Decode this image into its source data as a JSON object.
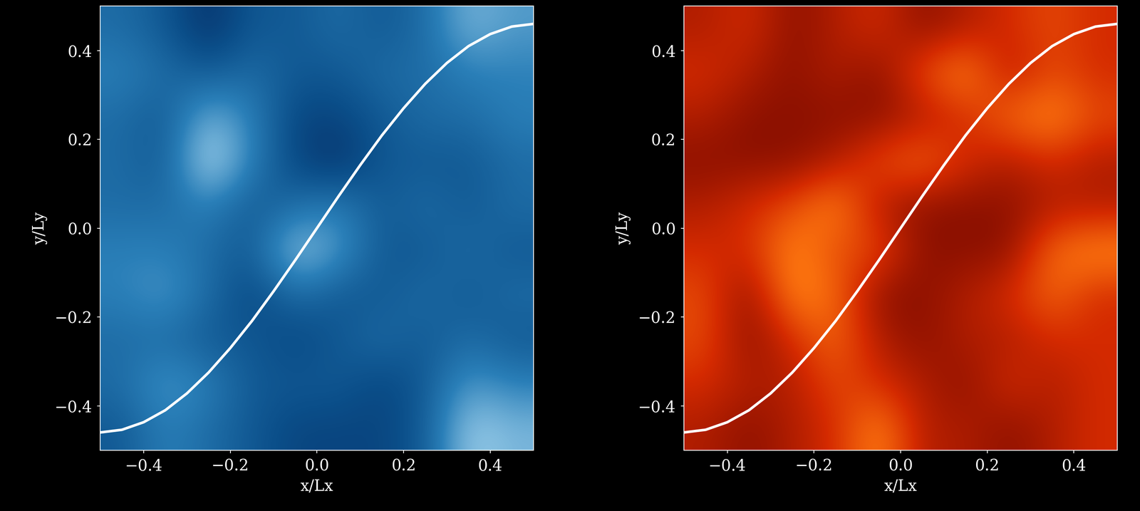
{
  "chart_data": [
    {
      "type": "heatmap",
      "xlabel": "x/Lx",
      "ylabel": "y/Ly",
      "xlim": [
        -0.5,
        0.5
      ],
      "ylim": [
        -0.5,
        0.5
      ],
      "xticks": [
        {
          "value": -0.4,
          "label": "−0.4"
        },
        {
          "value": -0.2,
          "label": "−0.2"
        },
        {
          "value": 0.0,
          "label": "0.0"
        },
        {
          "value": 0.2,
          "label": "0.2"
        },
        {
          "value": 0.4,
          "label": "0.4"
        }
      ],
      "yticks": [
        {
          "value": -0.4,
          "label": "−0.4"
        },
        {
          "value": -0.2,
          "label": "−0.2"
        },
        {
          "value": 0.0,
          "label": "0.0"
        },
        {
          "value": 0.2,
          "label": "0.2"
        },
        {
          "value": 0.4,
          "label": "0.4"
        }
      ],
      "cell_range": [
        0,
        1
      ],
      "cells": [
        [
          0.4,
          0.3,
          0.1,
          0.3,
          0.3,
          0.4,
          0.3,
          0.4,
          0.7,
          0.6
        ],
        [
          0.5,
          0.4,
          0.3,
          0.4,
          0.3,
          0.3,
          0.4,
          0.4,
          0.5,
          0.5
        ],
        [
          0.4,
          0.3,
          0.7,
          0.5,
          0.2,
          0.2,
          0.3,
          0.4,
          0.4,
          0.5
        ],
        [
          0.4,
          0.3,
          0.9,
          0.5,
          0.2,
          0.1,
          0.3,
          0.3,
          0.3,
          0.4
        ],
        [
          0.4,
          0.4,
          0.5,
          0.3,
          0.4,
          0.5,
          0.3,
          0.4,
          0.3,
          0.4
        ],
        [
          0.5,
          0.5,
          0.4,
          0.3,
          0.8,
          0.6,
          0.3,
          0.3,
          0.4,
          0.3
        ],
        [
          0.5,
          0.6,
          0.4,
          0.2,
          0.4,
          0.3,
          0.3,
          0.4,
          0.3,
          0.4
        ],
        [
          0.4,
          0.4,
          0.3,
          0.3,
          0.2,
          0.3,
          0.4,
          0.3,
          0.4,
          0.3
        ],
        [
          0.4,
          0.6,
          0.5,
          0.3,
          0.3,
          0.3,
          0.2,
          0.3,
          0.6,
          0.5
        ],
        [
          0.3,
          0.5,
          0.4,
          0.3,
          0.2,
          0.2,
          0.2,
          0.3,
          0.8,
          0.7
        ]
      ],
      "curve": {
        "color": "#ffffff",
        "x": [
          -0.5,
          -0.45,
          -0.4,
          -0.35,
          -0.3,
          -0.25,
          -0.2,
          -0.15,
          -0.1,
          -0.05,
          0.0,
          0.05,
          0.1,
          0.15,
          0.2,
          0.25,
          0.3,
          0.35,
          0.4,
          0.45,
          0.5
        ],
        "y": [
          -0.46,
          -0.454,
          -0.437,
          -0.41,
          -0.372,
          -0.325,
          -0.27,
          -0.209,
          -0.142,
          -0.072,
          0.0,
          0.072,
          0.142,
          0.209,
          0.27,
          0.325,
          0.372,
          0.41,
          0.437,
          0.454,
          0.46
        ]
      }
    },
    {
      "type": "heatmap",
      "xlabel": "x/Lx",
      "ylabel": "y/Ly",
      "xlim": [
        -0.5,
        0.5
      ],
      "ylim": [
        -0.5,
        0.5
      ],
      "xticks": [
        {
          "value": -0.4,
          "label": "−0.4"
        },
        {
          "value": -0.2,
          "label": "−0.2"
        },
        {
          "value": 0.0,
          "label": "0.0"
        },
        {
          "value": 0.2,
          "label": "0.2"
        },
        {
          "value": 0.4,
          "label": "0.4"
        }
      ],
      "yticks": [
        {
          "value": -0.4,
          "label": "−0.4"
        },
        {
          "value": -0.2,
          "label": "−0.2"
        },
        {
          "value": 0.0,
          "label": "0.0"
        },
        {
          "value": 0.2,
          "label": "0.2"
        },
        {
          "value": 0.4,
          "label": "0.4"
        }
      ],
      "cell_range": [
        0,
        1
      ],
      "cells": [
        [
          0.4,
          0.5,
          0.3,
          0.4,
          0.5,
          0.3,
          0.4,
          0.5,
          0.6,
          0.5
        ],
        [
          0.5,
          0.4,
          0.3,
          0.4,
          0.3,
          0.6,
          0.8,
          0.4,
          0.6,
          0.5
        ],
        [
          0.4,
          0.3,
          0.3,
          0.3,
          0.3,
          0.4,
          0.5,
          0.7,
          0.8,
          0.6
        ],
        [
          0.3,
          0.3,
          0.3,
          0.4,
          0.6,
          0.7,
          0.5,
          0.4,
          0.5,
          0.4
        ],
        [
          0.4,
          0.5,
          0.6,
          0.8,
          0.4,
          0.3,
          0.3,
          0.3,
          0.4,
          0.4
        ],
        [
          0.5,
          0.5,
          0.8,
          0.6,
          0.6,
          0.3,
          0.3,
          0.3,
          0.7,
          0.8
        ],
        [
          0.6,
          0.3,
          0.8,
          0.7,
          0.3,
          0.3,
          0.4,
          0.5,
          0.7,
          0.5
        ],
        [
          0.6,
          0.3,
          0.5,
          0.7,
          0.4,
          0.3,
          0.4,
          0.4,
          0.5,
          0.5
        ],
        [
          0.5,
          0.4,
          0.4,
          0.6,
          0.5,
          0.4,
          0.3,
          0.5,
          0.4,
          0.5
        ],
        [
          0.4,
          0.3,
          0.4,
          0.5,
          0.8,
          0.4,
          0.4,
          0.3,
          0.4,
          0.5
        ]
      ],
      "curve": {
        "color": "#ffffff",
        "x": [
          -0.5,
          -0.45,
          -0.4,
          -0.35,
          -0.3,
          -0.25,
          -0.2,
          -0.15,
          -0.1,
          -0.05,
          0.0,
          0.05,
          0.1,
          0.15,
          0.2,
          0.25,
          0.3,
          0.35,
          0.4,
          0.45,
          0.5
        ],
        "y": [
          -0.46,
          -0.454,
          -0.437,
          -0.41,
          -0.372,
          -0.325,
          -0.27,
          -0.209,
          -0.142,
          -0.072,
          0.0,
          0.072,
          0.142,
          0.209,
          0.27,
          0.325,
          0.372,
          0.41,
          0.437,
          0.454,
          0.46
        ]
      }
    }
  ]
}
